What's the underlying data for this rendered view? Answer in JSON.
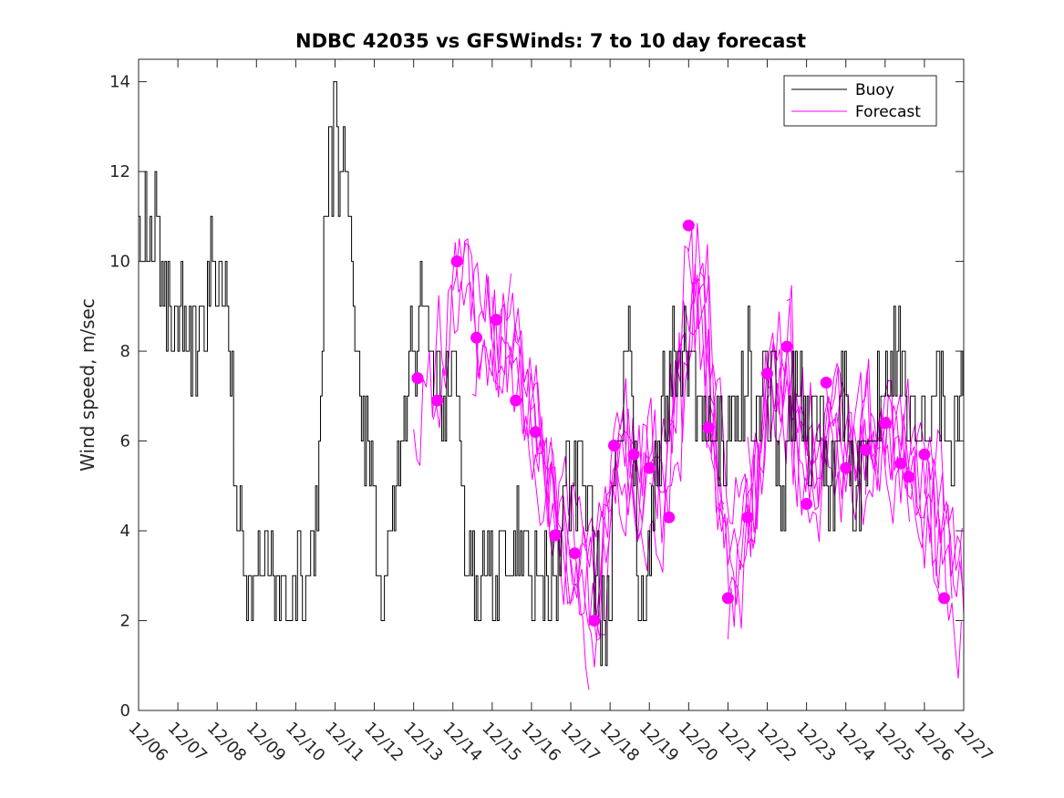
{
  "chart_data": {
    "type": "line",
    "title": "NDBC 42035 vs GFSWinds: 7 to 10 day forecast",
    "xlabel": "",
    "ylabel": "Wind speed, m/sec",
    "xlim": [
      0,
      21
    ],
    "ylim": [
      0,
      14.5
    ],
    "x_tick_labels": [
      "12/06",
      "12/07",
      "12/08",
      "12/09",
      "12/10",
      "12/11",
      "12/12",
      "12/13",
      "12/14",
      "12/15",
      "12/16",
      "12/17",
      "12/18",
      "12/19",
      "12/20",
      "12/21",
      "12/22",
      "12/23",
      "12/24",
      "12/25",
      "12/26",
      "12/27"
    ],
    "y_ticks": [
      0,
      2,
      4,
      6,
      8,
      10,
      12,
      14
    ],
    "legend": {
      "placement": "top-right",
      "entries": [
        {
          "label": "Buoy",
          "color": "#000000"
        },
        {
          "label": "Forecast",
          "color": "#ff00ff"
        }
      ]
    },
    "colors": {
      "buoy": "#000000",
      "forecast": "#ff00ff"
    },
    "buoy_anchors": {
      "x": [
        0.0,
        0.2,
        0.4,
        0.6,
        0.9,
        1.2,
        1.5,
        1.8,
        2.1,
        2.4,
        2.7,
        3.0,
        3.3,
        3.6,
        3.9,
        4.2,
        4.5,
        4.8,
        5.0,
        5.3,
        5.6,
        5.9,
        6.2,
        6.5,
        6.8,
        7.1,
        7.4,
        7.7,
        8.0,
        8.3,
        8.6,
        8.9,
        9.2,
        9.5,
        9.8,
        10.1,
        10.4,
        10.7,
        11.0,
        11.3,
        11.6,
        11.9,
        12.2,
        12.5,
        12.8,
        13.1,
        13.4,
        13.7,
        14.0,
        14.3,
        14.6,
        14.9,
        15.2,
        15.5,
        15.8,
        16.1,
        16.4,
        16.7,
        17.0,
        17.3,
        17.6,
        17.9,
        18.2,
        18.5,
        18.8,
        19.1,
        19.4,
        19.7,
        20.0,
        20.3,
        20.6,
        21.0
      ],
      "y": [
        10,
        11,
        10.5,
        10,
        9,
        8.5,
        8,
        9.5,
        10,
        6.5,
        3,
        2.5,
        3,
        2.5,
        2.5,
        3,
        4,
        12,
        13,
        11,
        7,
        5.5,
        2,
        5,
        7,
        9,
        8,
        6.5,
        8,
        4,
        3,
        3,
        3.5,
        4,
        4,
        3,
        2.5,
        3.5,
        5.5,
        5,
        3,
        1.5,
        6,
        8,
        1.5,
        5,
        7,
        8,
        7.5,
        6.5,
        6,
        5.5,
        6.5,
        7.5,
        6.5,
        7.5,
        4.5,
        7.5,
        6,
        6.5,
        5,
        7,
        4.5,
        6,
        7,
        8,
        7.5,
        6.5,
        6,
        7.5,
        5.5,
        7.5
      ]
    },
    "forecast_points": {
      "x": [
        7.1,
        7.6,
        8.1,
        8.6,
        9.1,
        9.6,
        10.1,
        10.6,
        11.1,
        11.6,
        12.1,
        12.6,
        13.0,
        13.5,
        14.0,
        14.5,
        15.0,
        15.5,
        16.0,
        16.5,
        17.0,
        17.5,
        18.0,
        18.5,
        19.0,
        19.4,
        19.6,
        20.0,
        20.5
      ],
      "y": [
        7.4,
        6.9,
        10.0,
        8.3,
        8.7,
        6.9,
        6.2,
        3.9,
        3.5,
        2.0,
        5.9,
        5.7,
        5.4,
        4.3,
        10.8,
        6.3,
        2.5,
        4.3,
        7.5,
        8.1,
        4.6,
        7.3,
        5.4,
        5.8,
        6.4,
        5.5,
        5.2,
        5.7,
        2.5
      ]
    }
  }
}
